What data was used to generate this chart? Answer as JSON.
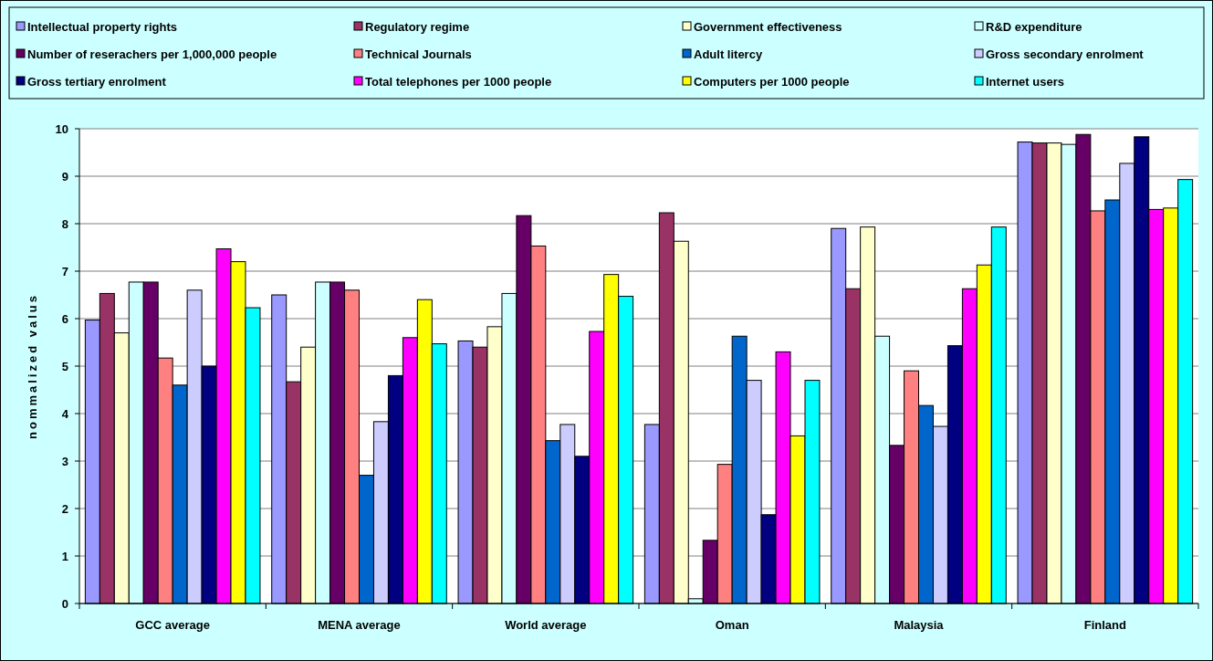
{
  "chart_data": {
    "type": "bar",
    "ylabel": "nommalized valus",
    "categories": [
      "GCC average",
      "MENA average",
      "World average",
      "Oman",
      "Malaysia",
      "Finland"
    ],
    "series": [
      {
        "name": "Intellectual property rights",
        "color": "#9999ff",
        "values": [
          5.97,
          6.5,
          5.53,
          3.77,
          7.9,
          9.72
        ]
      },
      {
        "name": "Regulatory regime",
        "color": "#993366",
        "values": [
          6.53,
          4.67,
          5.4,
          8.23,
          6.63,
          9.7
        ]
      },
      {
        "name": "Government effectiveness",
        "color": "#ffffcc",
        "values": [
          5.7,
          5.4,
          5.83,
          7.63,
          7.93,
          9.7
        ]
      },
      {
        "name": "R&D expenditure",
        "color": "#ccffff",
        "values": [
          6.77,
          6.77,
          6.53,
          0.1,
          5.63,
          9.67
        ]
      },
      {
        "name": "Number of reserachers per 1,000,000 people",
        "color": "#660066",
        "values": [
          6.77,
          6.77,
          8.17,
          1.33,
          3.33,
          9.88
        ]
      },
      {
        "name": "Technical Journals",
        "color": "#ff8080",
        "values": [
          5.17,
          6.6,
          7.53,
          2.93,
          4.9,
          8.27
        ]
      },
      {
        "name": "Adult litercy",
        "color": "#0066cc",
        "values": [
          4.6,
          2.7,
          3.43,
          5.63,
          4.17,
          8.5
        ]
      },
      {
        "name": "Gross secondary enrolment",
        "color": "#ccccff",
        "values": [
          6.6,
          3.83,
          3.77,
          4.7,
          3.73,
          9.27
        ]
      },
      {
        "name": "Gross tertiary enrolment",
        "color": "#000080",
        "values": [
          5.0,
          4.8,
          3.1,
          1.87,
          5.43,
          9.83
        ]
      },
      {
        "name": "Total telephones per 1000 people",
        "color": "#ff00ff",
        "values": [
          7.47,
          5.6,
          5.73,
          5.3,
          6.63,
          8.3
        ]
      },
      {
        "name": "Computers per 1000 people",
        "color": "#ffff00",
        "values": [
          7.2,
          6.4,
          6.93,
          3.53,
          7.13,
          8.33
        ]
      },
      {
        "name": "Internet users",
        "color": "#00ffff",
        "values": [
          6.23,
          5.47,
          6.47,
          4.7,
          7.93,
          8.93
        ]
      }
    ],
    "ylim": [
      0,
      10
    ],
    "yticks": [
      0,
      1,
      2,
      3,
      4,
      5,
      6,
      7,
      8,
      9,
      10
    ],
    "grid": "y",
    "legend": "top"
  }
}
